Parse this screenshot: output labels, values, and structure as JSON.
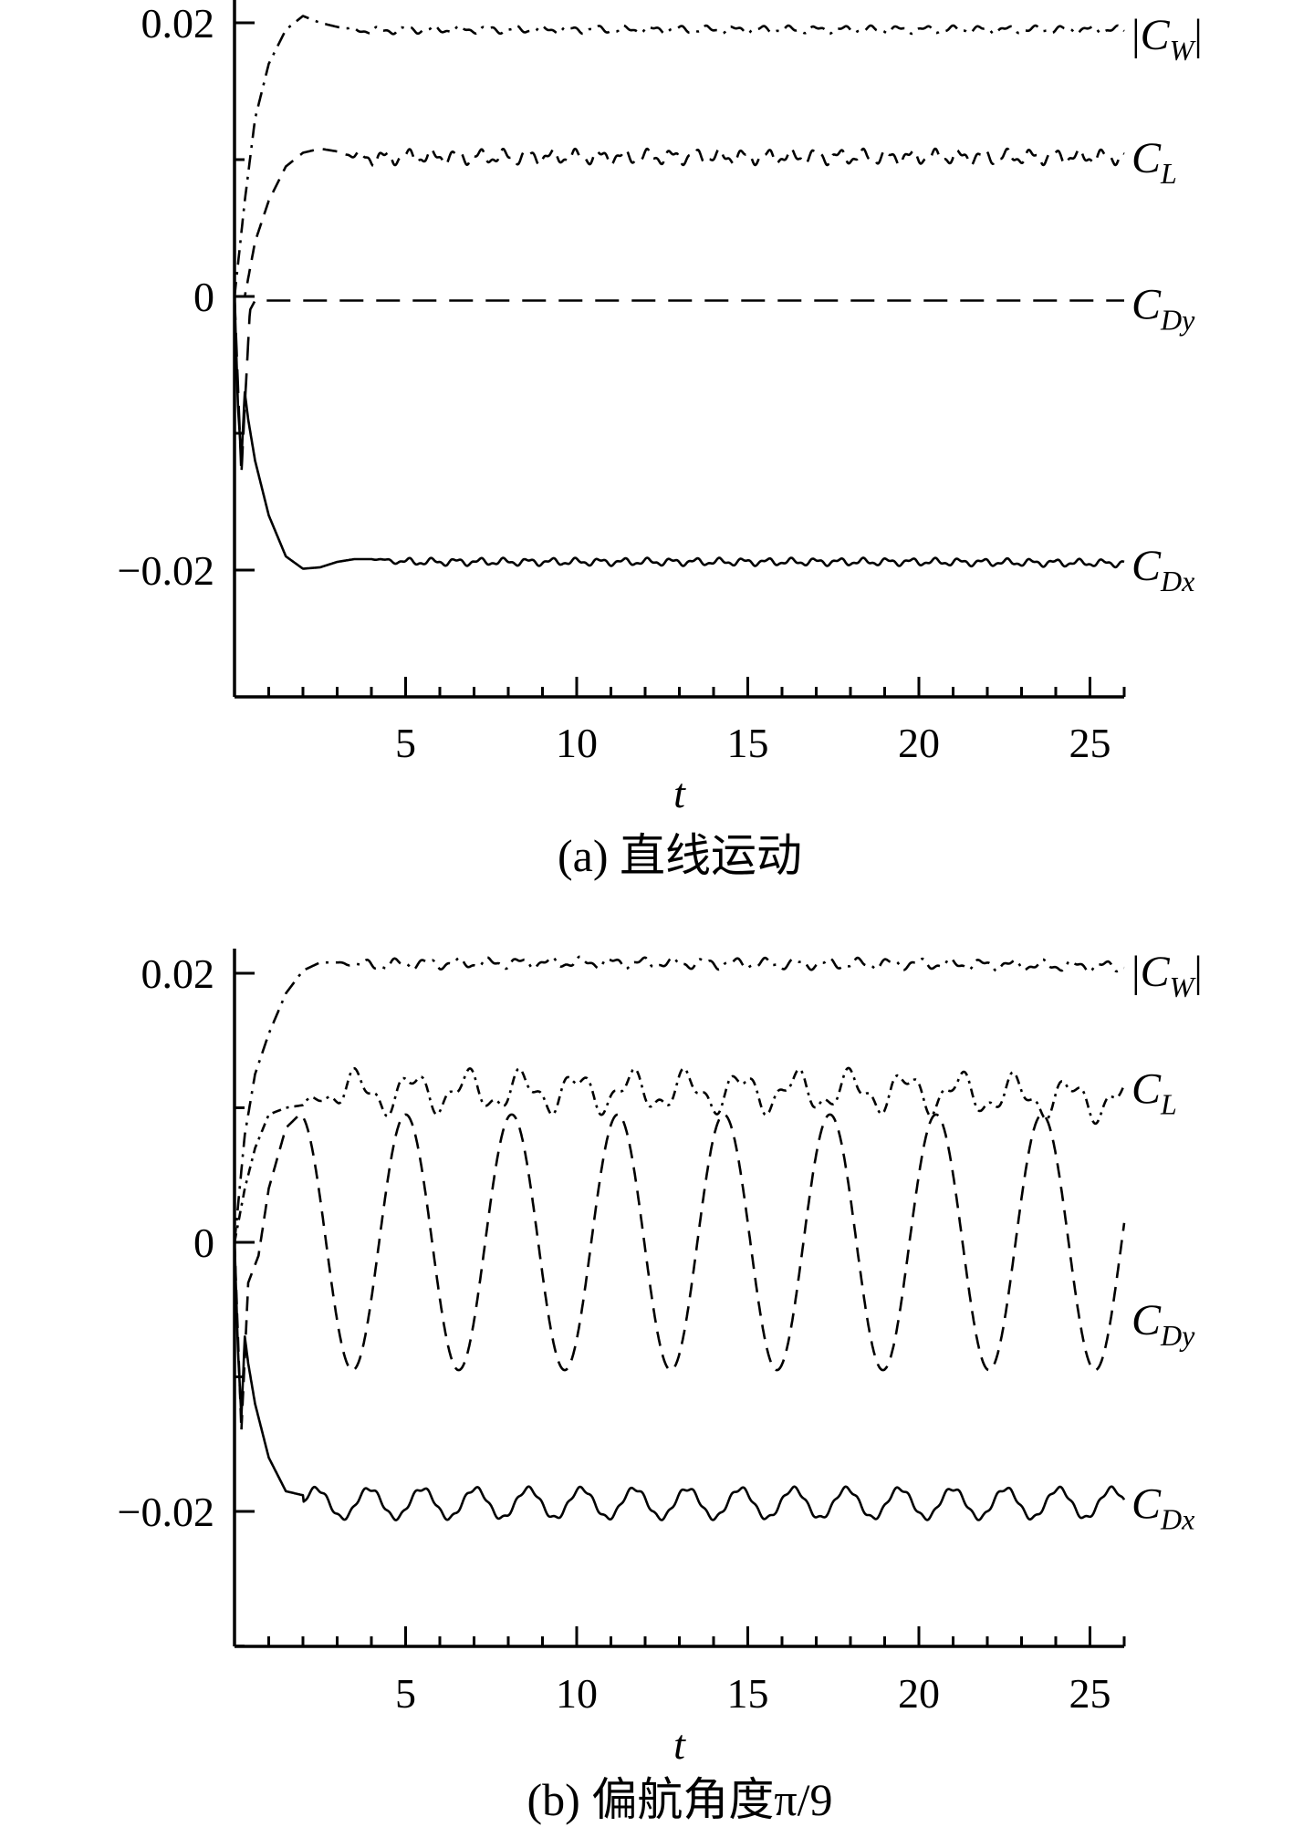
{
  "chart_data": [
    {
      "type": "line",
      "caption": "(a) 直线运动",
      "xlabel": "t",
      "ylabel": "",
      "xlim": [
        0,
        26
      ],
      "ylim": [
        -0.03,
        0.022
      ],
      "xticks": [
        5,
        10,
        15,
        20,
        25
      ],
      "xtick_labels": [
        "5",
        "10",
        "15",
        "20",
        "25"
      ],
      "yticks": [
        0.02,
        0,
        -0.02
      ],
      "ytick_labels": [
        "0.02",
        "0",
        "−0.02"
      ],
      "legend": "labels at right end of each series",
      "series": [
        {
          "name": "|C_W|",
          "label": {
            "pre": "|",
            "sym": "C",
            "sub": "W",
            "post": "|"
          },
          "style": "dash-dot",
          "x": [
            0,
            0.3,
            0.6,
            1.0,
            1.5,
            2.0,
            2.5,
            3.0,
            3.5,
            4.0,
            5,
            8,
            10,
            15,
            20,
            26
          ],
          "y": [
            0.0,
            0.007,
            0.013,
            0.017,
            0.0195,
            0.0205,
            0.02,
            0.0197,
            0.0195,
            0.0194,
            0.0195,
            0.0195,
            0.0195,
            0.0195,
            0.0195,
            0.0195
          ],
          "ripple_amp": 0.0002,
          "ripple_period": 0.8,
          "ripple_start": 3.0
        },
        {
          "name": "C_L",
          "label": {
            "pre": "",
            "sym": "C",
            "sub": "L",
            "post": ""
          },
          "style": "dashed",
          "x": [
            0,
            0.3,
            0.6,
            1.0,
            1.5,
            2.0,
            2.5,
            3.0,
            3.5,
            4.0,
            5,
            10,
            15,
            20,
            26
          ],
          "y": [
            0.0,
            0.0,
            0.004,
            0.007,
            0.0095,
            0.0105,
            0.0108,
            0.0106,
            0.0103,
            0.0101,
            0.0102,
            0.0102,
            0.0102,
            0.0102,
            0.0102
          ],
          "ripple_amp": 0.0004,
          "ripple_period": 0.7,
          "ripple_start": 3.0
        },
        {
          "name": "C_Dy",
          "label": {
            "pre": "",
            "sym": "C",
            "sub": "Dy",
            "post": ""
          },
          "style": "long-dash",
          "x": [
            0,
            0.2,
            0.3,
            0.45,
            0.6,
            1.0,
            5,
            10,
            15,
            20,
            26
          ],
          "y": [
            0.0,
            -0.013,
            -0.008,
            -0.001,
            -0.0003,
            -0.0003,
            -0.0003,
            -0.0003,
            -0.0003,
            -0.0003,
            -0.0003
          ],
          "ripple_amp": 0,
          "ripple_period": 1,
          "ripple_start": 0
        },
        {
          "name": "C_Dx",
          "label": {
            "pre": "",
            "sym": "C",
            "sub": "Dx",
            "post": ""
          },
          "style": "solid",
          "x": [
            0,
            0.1,
            0.2,
            0.3,
            0.4,
            0.6,
            1.0,
            1.5,
            2.0,
            2.5,
            3.0,
            3.5,
            4.0,
            4.5,
            5,
            10,
            15,
            20,
            26
          ],
          "y": [
            0.0,
            -0.008,
            -0.012,
            -0.007,
            -0.009,
            -0.012,
            -0.016,
            -0.019,
            -0.0199,
            -0.0198,
            -0.0194,
            -0.0192,
            -0.0192,
            -0.0193,
            -0.0194,
            -0.0194,
            -0.0194,
            -0.0194,
            -0.0195
          ],
          "ripple_amp": 0.0002,
          "ripple_period": 0.7,
          "ripple_start": 4.0
        }
      ]
    },
    {
      "type": "line",
      "caption": "(b) 偏航角度π/9",
      "xlabel": "t",
      "ylabel": "",
      "xlim": [
        0,
        26
      ],
      "ylim": [
        -0.03,
        0.022
      ],
      "xticks": [
        5,
        10,
        15,
        20,
        25
      ],
      "xtick_labels": [
        "5",
        "10",
        "15",
        "20",
        "25"
      ],
      "yticks": [
        0.02,
        0,
        -0.02
      ],
      "ytick_labels": [
        "0.02",
        "0",
        "−0.02"
      ],
      "legend": "labels at right end of each series",
      "series": [
        {
          "name": "|C_W|",
          "label": {
            "pre": "|",
            "sym": "C",
            "sub": "W",
            "post": "|"
          },
          "style": "dash-dot",
          "x": [
            0,
            0.3,
            0.6,
            1.0,
            1.5,
            2.0,
            2.5,
            3.0,
            3.5,
            4,
            5,
            10,
            15,
            20,
            26
          ],
          "y": [
            0.0,
            0.008,
            0.0125,
            0.0155,
            0.0185,
            0.0202,
            0.0208,
            0.0208,
            0.0207,
            0.0206,
            0.0207,
            0.0208,
            0.0207,
            0.0207,
            0.0205
          ],
          "ripple_amp": 0.0003,
          "ripple_period": 0.9,
          "ripple_start": 3.0
        },
        {
          "name": "C_L",
          "label": {
            "pre": "",
            "sym": "C",
            "sub": "L",
            "post": ""
          },
          "style": "dash-dot-short",
          "x": [
            0,
            0.3,
            0.6,
            1.0,
            1.5,
            2.0,
            2.5,
            3.0,
            4,
            5,
            10,
            15,
            20,
            26
          ],
          "y": [
            0.0,
            0.004,
            0.007,
            0.0095,
            0.01,
            0.0102,
            0.011,
            0.0115,
            0.011,
            0.0112,
            0.0112,
            0.0112,
            0.0112,
            0.0105
          ],
          "ripple_amp": 0.0012,
          "ripple_period": 1.6,
          "ripple_start": 2.0
        },
        {
          "name": "C_Dy",
          "label": {
            "pre": "",
            "sym": "C",
            "sub": "Dy",
            "post": ""
          },
          "style": "dashed",
          "sine": {
            "mean": 0.0,
            "amp": 0.0095,
            "period": 3.1,
            "phase_x": 1.9,
            "start": 1.0
          },
          "x": [
            0,
            0.2,
            0.4,
            0.7,
            1.0,
            1.5,
            1.9
          ],
          "y": [
            0.0,
            -0.014,
            -0.003,
            -0.001,
            0.004,
            0.0085,
            0.0095
          ]
        },
        {
          "name": "C_Dx",
          "label": {
            "pre": "",
            "sym": "C",
            "sub": "Dx",
            "post": ""
          },
          "style": "solid",
          "x": [
            0,
            0.1,
            0.2,
            0.3,
            0.4,
            0.6,
            1.0,
            1.5,
            2.0
          ],
          "y": [
            0.0,
            -0.008,
            -0.013,
            -0.007,
            -0.009,
            -0.012,
            -0.016,
            -0.0185,
            -0.0188
          ],
          "osc": {
            "mean": -0.0194,
            "amp": 0.0011,
            "period": 1.55,
            "start": 2.0
          }
        }
      ]
    }
  ]
}
